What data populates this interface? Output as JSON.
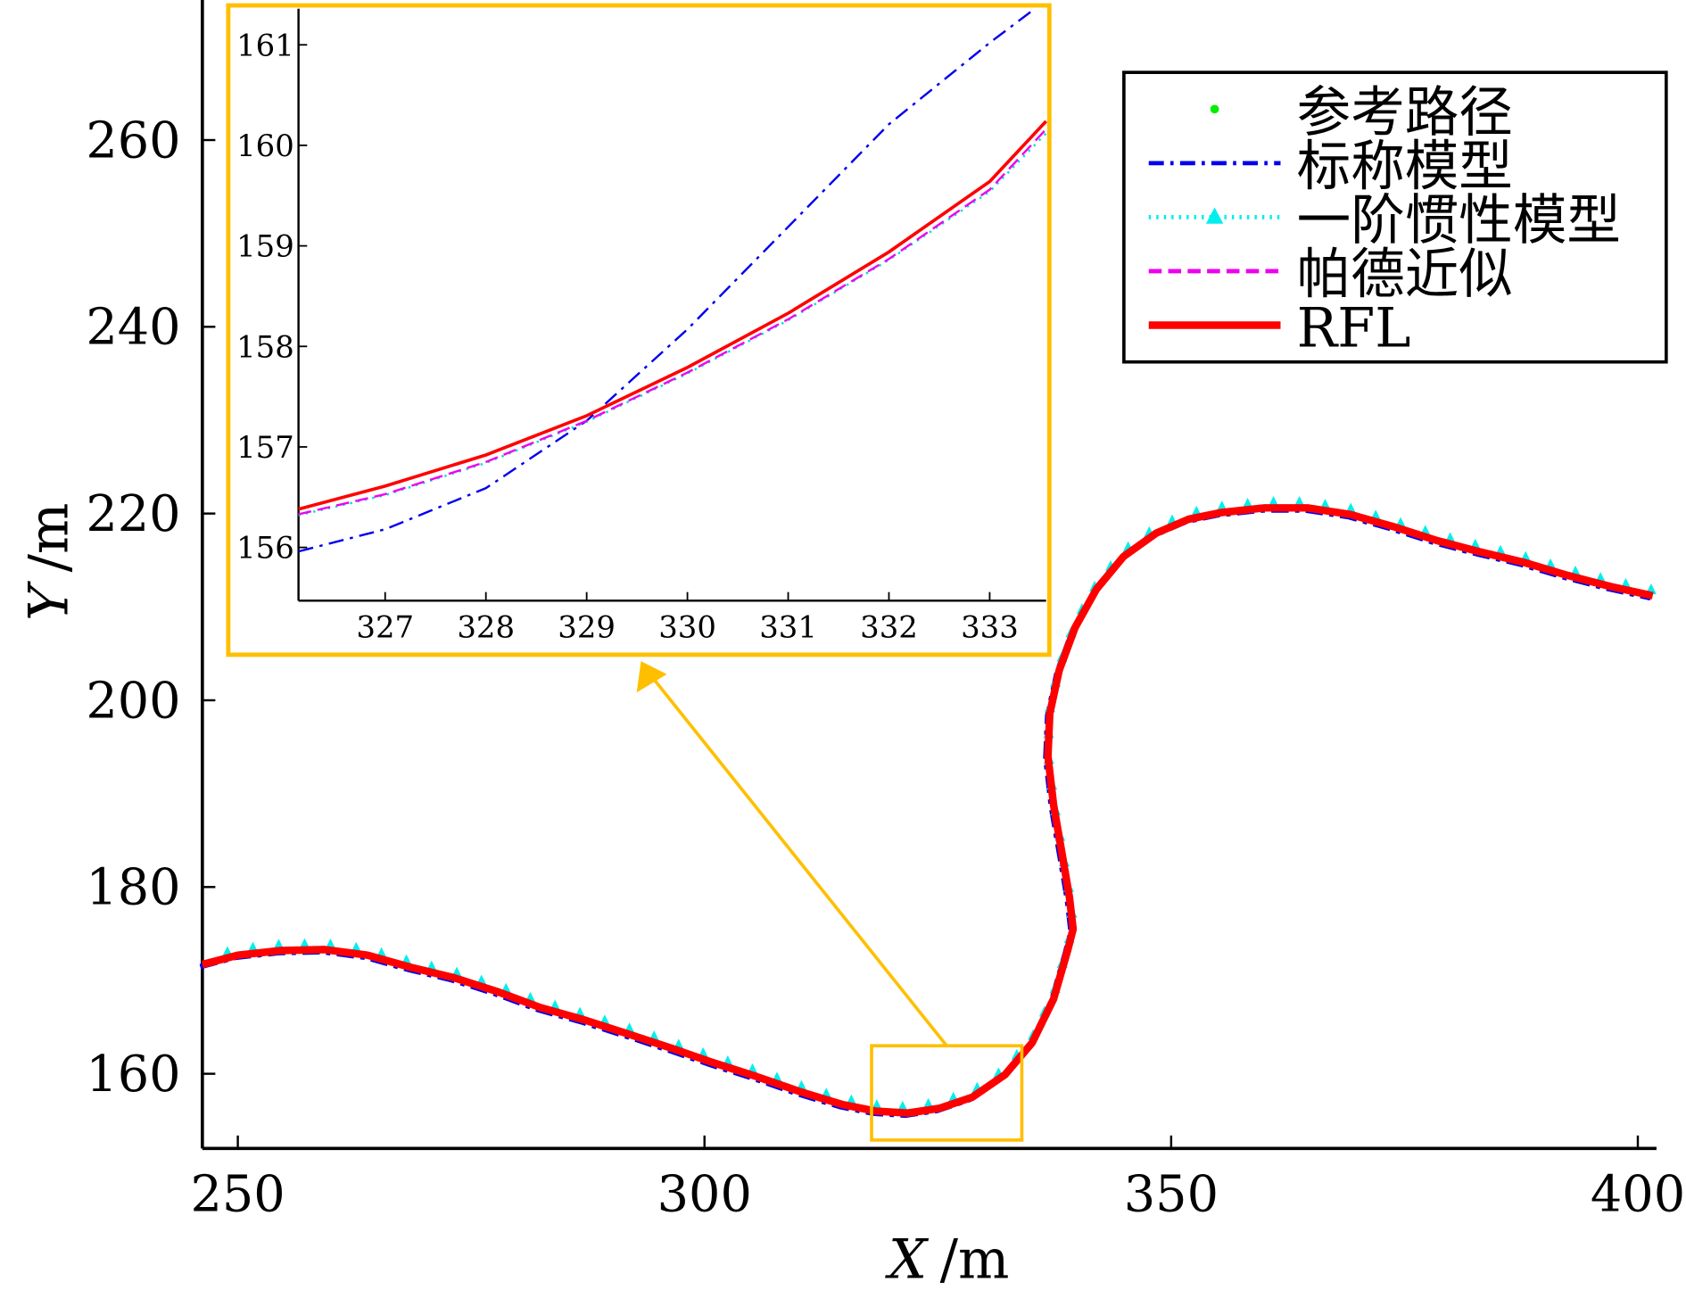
{
  "chart_data": {
    "type": "line",
    "title": "",
    "xlabel": "X /m",
    "ylabel": "Y /m",
    "xlabel_var": "X",
    "ylabel_var": "Y",
    "unit": "/m",
    "xlim": [
      246.2,
      402
    ],
    "ylim": [
      152,
      275
    ],
    "xticks": [
      250,
      300,
      350,
      400
    ],
    "yticks": [
      160,
      180,
      200,
      220,
      240,
      260
    ],
    "grid": false,
    "legend_position": "top-right",
    "legend": [
      {
        "label": "参考路径",
        "color": "#00ee00",
        "style": "dot"
      },
      {
        "label": "标称模型",
        "color": "#0000ee",
        "style": "dashdot"
      },
      {
        "label": "一阶惯性模型",
        "color": "#00eeee",
        "style": "dotted-triangle"
      },
      {
        "label": "帕德近似",
        "color": "#ee00ee",
        "style": "dashed"
      },
      {
        "label": "RFL",
        "color": "#ff0000",
        "style": "solid"
      }
    ],
    "trajectory": {
      "x": [
        246.2,
        250,
        254.6,
        259.3,
        263.9,
        268.5,
        273.1,
        277.8,
        282.4,
        287.0,
        291.7,
        296.3,
        300.9,
        305.6,
        310.2,
        314.8,
        318.3,
        321.8,
        325.2,
        328.7,
        332.2,
        335.1,
        337.4,
        338.9,
        339.5,
        339.1,
        338.3,
        337.4,
        336.8,
        337.0,
        338.0,
        339.7,
        342.0,
        344.9,
        348.4,
        351.9,
        355.3,
        360.0,
        364.6,
        369.2,
        373.8,
        378.5,
        383.1,
        387.7,
        392.4,
        397.0,
        401.6
      ],
      "y": [
        171.7,
        172.7,
        173.2,
        173.3,
        172.7,
        171.4,
        170.3,
        168.8,
        167.1,
        165.8,
        164.3,
        162.8,
        161.2,
        159.7,
        158.1,
        156.7,
        156.0,
        155.8,
        156.3,
        157.5,
        159.9,
        163.3,
        168.0,
        173.2,
        175.5,
        178.9,
        183.6,
        188.8,
        194.0,
        198.6,
        203.2,
        207.8,
        211.9,
        215.4,
        217.9,
        219.4,
        220.1,
        220.6,
        220.6,
        219.9,
        218.6,
        217.1,
        215.9,
        214.8,
        213.4,
        212.2,
        211.2
      ]
    },
    "zoom_region": {
      "xlim": [
        317.9,
        334.0
      ],
      "ylim": [
        152.9,
        163.0
      ]
    },
    "inset": {
      "xlim": [
        326.14,
        333.56
      ],
      "ylim": [
        155.47,
        161.36
      ],
      "xticks": [
        327,
        328,
        329,
        330,
        331,
        332,
        333
      ],
      "yticks": [
        156,
        157,
        158,
        159,
        160,
        161
      ],
      "series": [
        {
          "name": "标称模型",
          "color": "#0000ee",
          "style": "dashdot",
          "x": [
            326.14,
            327,
            328,
            329,
            330,
            331,
            332,
            333,
            333.45
          ],
          "y": [
            155.96,
            156.18,
            156.59,
            157.26,
            158.17,
            159.19,
            160.21,
            161.02,
            161.36
          ]
        },
        {
          "name": "一阶惯性模型",
          "color": "#00dddd",
          "style": "dotted",
          "x": [
            326.14,
            327,
            328,
            329,
            330,
            331,
            332,
            333,
            333.56
          ],
          "y": [
            156.32,
            156.52,
            156.84,
            157.25,
            157.73,
            158.26,
            158.86,
            159.54,
            160.12
          ]
        },
        {
          "name": "帕德近似",
          "color": "#ee00ee",
          "style": "dashed",
          "x": [
            326.14,
            327,
            328,
            329,
            330,
            331,
            332,
            333,
            333.56
          ],
          "y": [
            156.33,
            156.53,
            156.85,
            157.26,
            157.74,
            158.27,
            158.87,
            159.56,
            160.16
          ]
        },
        {
          "name": "RFL",
          "color": "#ff0000",
          "style": "solid",
          "x": [
            326.14,
            327,
            328,
            329,
            330,
            331,
            332,
            333,
            333.56
          ],
          "y": [
            156.38,
            156.61,
            156.92,
            157.31,
            157.79,
            158.33,
            158.94,
            159.64,
            160.24
          ]
        }
      ]
    },
    "accent_color": "#ffbf00"
  }
}
